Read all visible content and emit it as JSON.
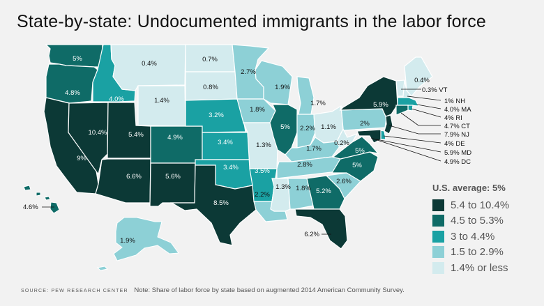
{
  "title": "State-by-state: Undocumented immigrants in the labor force",
  "legend": {
    "title": "U.S. average: 5%",
    "items": [
      {
        "label": "5.4 to 10.4%",
        "color": "#0c3936"
      },
      {
        "label": "4.5 to 5.3%",
        "color": "#0f6b67"
      },
      {
        "label": "3 to 4.4%",
        "color": "#1aa1a3"
      },
      {
        "label": "1.5 to 2.9%",
        "color": "#8dd0d6"
      },
      {
        "label": "1.4% or less",
        "color": "#d3ebee"
      }
    ]
  },
  "states": [
    {
      "id": "WA",
      "value": "5%",
      "bin": 1
    },
    {
      "id": "OR",
      "value": "4.8%",
      "bin": 1
    },
    {
      "id": "ID",
      "value": "4.0%",
      "bin": 2
    },
    {
      "id": "MT",
      "value": "0.4%",
      "bin": 4
    },
    {
      "id": "WY",
      "value": "1.4%",
      "bin": 4
    },
    {
      "id": "CA",
      "value": "9%",
      "bin": 0
    },
    {
      "id": "NV",
      "value": "10.4%",
      "bin": 0
    },
    {
      "id": "UT",
      "value": "5.4%",
      "bin": 0
    },
    {
      "id": "AZ",
      "value": "6.6%",
      "bin": 0
    },
    {
      "id": "CO",
      "value": "4.9%",
      "bin": 1
    },
    {
      "id": "NM",
      "value": "5.6%",
      "bin": 0
    },
    {
      "id": "ND",
      "value": "0.7%",
      "bin": 4
    },
    {
      "id": "SD",
      "value": "0.8%",
      "bin": 4
    },
    {
      "id": "NE",
      "value": "3.2%",
      "bin": 2
    },
    {
      "id": "KS",
      "value": "3.4%",
      "bin": 2
    },
    {
      "id": "OK",
      "value": "3.4%",
      "bin": 2
    },
    {
      "id": "TX",
      "value": "8.5%",
      "bin": 0
    },
    {
      "id": "MN",
      "value": "2.7%",
      "bin": 3
    },
    {
      "id": "IA",
      "value": "1.8%",
      "bin": 3
    },
    {
      "id": "MO",
      "value": "1.3%",
      "bin": 4
    },
    {
      "id": "AR",
      "value": "3.5%",
      "bin": 2
    },
    {
      "id": "LA",
      "value": "2.2%",
      "bin": 3
    },
    {
      "id": "WI",
      "value": "1.9%",
      "bin": 3
    },
    {
      "id": "IL",
      "value": "5%",
      "bin": 1
    },
    {
      "id": "MI",
      "value": "1.7%",
      "bin": 3
    },
    {
      "id": "IN",
      "value": "2.2%",
      "bin": 3
    },
    {
      "id": "OH",
      "value": "1.1%",
      "bin": 4
    },
    {
      "id": "KY",
      "value": "1.7%",
      "bin": 3
    },
    {
      "id": "TN",
      "value": "2.8%",
      "bin": 3
    },
    {
      "id": "MS",
      "value": "1.3%",
      "bin": 4
    },
    {
      "id": "AL",
      "value": "1.8%",
      "bin": 3
    },
    {
      "id": "GA",
      "value": "5.2%",
      "bin": 1
    },
    {
      "id": "FL",
      "value": "6.2%",
      "bin": 0
    },
    {
      "id": "SC",
      "value": "2.6%",
      "bin": 3
    },
    {
      "id": "NC",
      "value": "5%",
      "bin": 1
    },
    {
      "id": "VA",
      "value": "5%",
      "bin": 1
    },
    {
      "id": "WV",
      "value": "0.2%",
      "bin": 4
    },
    {
      "id": "PA",
      "value": "2%",
      "bin": 3
    },
    {
      "id": "NY",
      "value": "5.9%",
      "bin": 0
    },
    {
      "id": "ME",
      "value": "0.4%",
      "bin": 4
    },
    {
      "id": "AK",
      "value": "1.9%",
      "bin": 3
    },
    {
      "id": "HI",
      "value": "4.6%",
      "bin": 1
    },
    {
      "id": "VT",
      "value": "0.3%",
      "bin": 4
    },
    {
      "id": "NH",
      "value": "1%",
      "bin": 4
    },
    {
      "id": "MA",
      "value": "4.0%",
      "bin": 2
    },
    {
      "id": "RI",
      "value": "4%",
      "bin": 2
    },
    {
      "id": "CT",
      "value": "4.7%",
      "bin": 1
    },
    {
      "id": "NJ",
      "value": "7.9%",
      "bin": 0
    },
    {
      "id": "DE",
      "value": "4%",
      "bin": 2
    },
    {
      "id": "MD",
      "value": "5.9%",
      "bin": 0
    },
    {
      "id": "DC",
      "value": "4.9%",
      "bin": 1
    }
  ],
  "callout_labels": {
    "VT": "0.3% VT",
    "NH": "1% NH",
    "MA": "4.0% MA",
    "RI": "4% RI",
    "CT": "4.7% CT",
    "NJ": "7.9% NJ",
    "DE": "4% DE",
    "MD": "5.9% MD",
    "DC": "4.9% DC",
    "HI": "4.6%"
  },
  "footer": {
    "source": "SOURCE: PEW RESEARCH CENTER",
    "note": "Note: Share of labor force by state based on augmented 2014 American Community Survey."
  }
}
